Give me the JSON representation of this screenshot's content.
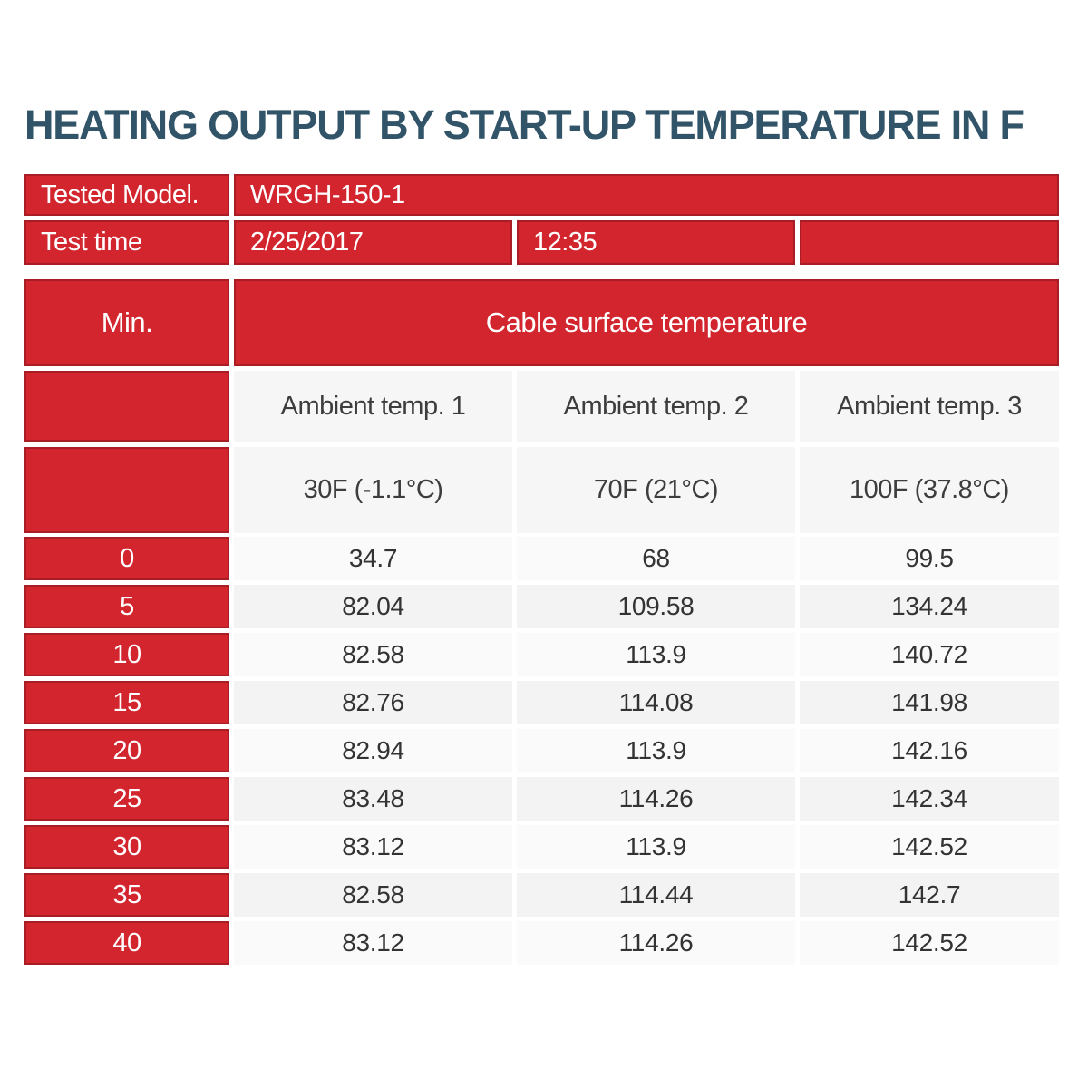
{
  "page": {
    "title": "HEATING OUTPUT BY START-UP TEMPERATURE IN F"
  },
  "info": {
    "tested_model_label": "Tested Model.",
    "tested_model_value": "WRGH-150-1",
    "test_time_label": "Test time",
    "test_date_value": "2/25/2017",
    "test_time_value": "12:35"
  },
  "table": {
    "min_header": "Min.",
    "group_header": "Cable surface temperature",
    "column_headers": [
      "Ambient temp. 1",
      "Ambient temp. 2",
      "Ambient temp. 3"
    ],
    "startup_temps": [
      "30F (-1.1°C)",
      "70F (21°C)",
      "100F (37.8°C)"
    ],
    "rows": [
      {
        "min": "0",
        "t1": "34.7",
        "t2": "68",
        "t3": "99.5"
      },
      {
        "min": "5",
        "t1": "82.04",
        "t2": "109.58",
        "t3": "134.24"
      },
      {
        "min": "10",
        "t1": "82.58",
        "t2": "113.9",
        "t3": "140.72"
      },
      {
        "min": "15",
        "t1": "82.76",
        "t2": "114.08",
        "t3": "141.98"
      },
      {
        "min": "20",
        "t1": "82.94",
        "t2": "113.9",
        "t3": "142.16"
      },
      {
        "min": "25",
        "t1": "83.48",
        "t2": "114.26",
        "t3": "142.34"
      },
      {
        "min": "30",
        "t1": "83.12",
        "t2": "113.9",
        "t3": "142.52"
      },
      {
        "min": "35",
        "t1": "82.58",
        "t2": "114.44",
        "t3": "142.7"
      },
      {
        "min": "40",
        "t1": "83.12",
        "t2": "114.26",
        "t3": "142.52"
      }
    ]
  },
  "colors": {
    "red_fill": "#d2252e",
    "red_border": "#a81e24",
    "title_text": "#315469",
    "light_cell": "#f6f6f6",
    "stripe_even": "#fafafa",
    "stripe_odd": "#f3f3f3"
  },
  "chart_data": {
    "type": "table",
    "title": "HEATING OUTPUT BY START-UP TEMPERATURE IN F",
    "xlabel": "Min.",
    "x": [
      0,
      5,
      10,
      15,
      20,
      25,
      30,
      35,
      40
    ],
    "group_label": "Cable surface temperature",
    "series": [
      {
        "name": "Ambient temp. 1 — 30F (-1.1°C)",
        "values": [
          34.7,
          82.04,
          82.58,
          82.76,
          82.94,
          83.48,
          83.12,
          82.58,
          83.12
        ]
      },
      {
        "name": "Ambient temp. 2 — 70F (21°C)",
        "values": [
          68,
          109.58,
          113.9,
          114.08,
          113.9,
          114.26,
          113.9,
          114.44,
          114.26
        ]
      },
      {
        "name": "Ambient temp. 3 — 100F (37.8°C)",
        "values": [
          99.5,
          134.24,
          140.72,
          141.98,
          142.16,
          142.34,
          142.52,
          142.7,
          142.52
        ]
      }
    ]
  }
}
